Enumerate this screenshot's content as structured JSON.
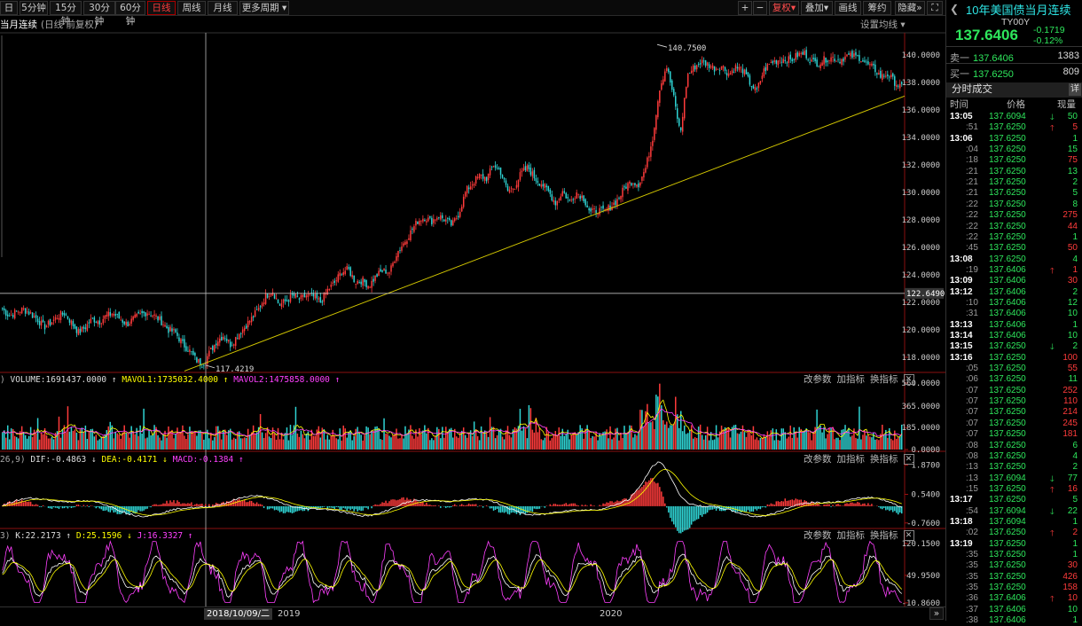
{
  "toolbar": {
    "items": [
      "日",
      "5分钟",
      "15分钟",
      "30分钟",
      "60分钟",
      "日线",
      "周线",
      "月线",
      "更多周期"
    ],
    "active": "日线",
    "right": [
      "复权",
      "叠加",
      "画线",
      "筹约",
      "隐藏"
    ],
    "plus": "+",
    "minus": "−"
  },
  "title": {
    "name": "当月连续",
    "sub": "(日线 前复权)",
    "settings": "设置均线"
  },
  "panel_buttons": [
    "改参数",
    "加指标",
    "换指标"
  ],
  "volume": {
    "prefix": ")",
    "label": "VOLUME:1691437.0000",
    "ma1": "MAVOL1:1735032.4000",
    "ma2": "MAVOL2:1475858.0000"
  },
  "macd": {
    "prefix": "26,9)",
    "dif": "DIF:-0.4863",
    "dea": "DEA:-0.4171",
    "macd": "MACD:-0.1384"
  },
  "kdj": {
    "prefix": "3)",
    "k": "K:22.2173",
    "d": "D:25.1596",
    "j": "J:16.3327"
  },
  "colors": {
    "up": "#ff3b3b",
    "down": "#2fd4d4",
    "ma1": "#ffff00",
    "ma2": "#ff40ff",
    "green": "#2ee65c",
    "trend": "#d4c800"
  },
  "xaxis": {
    "crosshair_date": "2018/10/09/二",
    "labels": [
      {
        "text": "2019",
        "pos": 0.3
      },
      {
        "text": "2020",
        "pos": 0.64
      }
    ]
  },
  "quote": {
    "title": "10年美国债当月连续",
    "code": "TY00Y",
    "price": "137.6406",
    "change": "-0.1719",
    "pct": "-0.12%",
    "ask_label": "卖一",
    "ask_price": "137.6406",
    "ask_vol": "1383",
    "bid_label": "买一",
    "bid_price": "137.6250",
    "bid_vol": "809",
    "section": "分时成交",
    "detail": "详",
    "hdr_time": "时间",
    "hdr_price": "价格",
    "hdr_vol": "现量"
  },
  "ticks": [
    {
      "t": "13:05",
      "b": 1,
      "p": "137.6094",
      "a": "down",
      "v": "50"
    },
    {
      "t": ":51",
      "b": 0,
      "p": "137.6250",
      "a": "up",
      "v": "5"
    },
    {
      "t": "13:06",
      "b": 1,
      "p": "137.6250",
      "a": "",
      "v": "1"
    },
    {
      "t": ":04",
      "b": 0,
      "p": "137.6250",
      "a": "",
      "v": "15"
    },
    {
      "t": ":18",
      "b": 0,
      "p": "137.6250",
      "a": "",
      "v": "75"
    },
    {
      "t": ":21",
      "b": 0,
      "p": "137.6250",
      "a": "",
      "v": "13"
    },
    {
      "t": ":21",
      "b": 0,
      "p": "137.6250",
      "a": "",
      "v": "2"
    },
    {
      "t": ":21",
      "b": 0,
      "p": "137.6250",
      "a": "",
      "v": "5"
    },
    {
      "t": ":22",
      "b": 0,
      "p": "137.6250",
      "a": "",
      "v": "8"
    },
    {
      "t": ":22",
      "b": 0,
      "p": "137.6250",
      "a": "",
      "v": "275"
    },
    {
      "t": ":22",
      "b": 0,
      "p": "137.6250",
      "a": "",
      "v": "44"
    },
    {
      "t": ":22",
      "b": 0,
      "p": "137.6250",
      "a": "",
      "v": "1"
    },
    {
      "t": ":45",
      "b": 0,
      "p": "137.6250",
      "a": "",
      "v": "50"
    },
    {
      "t": "13:08",
      "b": 1,
      "p": "137.6250",
      "a": "",
      "v": "4"
    },
    {
      "t": ":19",
      "b": 0,
      "p": "137.6406",
      "a": "up",
      "v": "1"
    },
    {
      "t": "13:09",
      "b": 1,
      "p": "137.6406",
      "a": "",
      "v": "30"
    },
    {
      "t": "13:12",
      "b": 1,
      "p": "137.6406",
      "a": "",
      "v": "2"
    },
    {
      "t": ":10",
      "b": 0,
      "p": "137.6406",
      "a": "",
      "v": "12"
    },
    {
      "t": ":31",
      "b": 0,
      "p": "137.6406",
      "a": "",
      "v": "10"
    },
    {
      "t": "13:13",
      "b": 1,
      "p": "137.6406",
      "a": "",
      "v": "1"
    },
    {
      "t": "13:14",
      "b": 1,
      "p": "137.6406",
      "a": "",
      "v": "10"
    },
    {
      "t": "13:15",
      "b": 1,
      "p": "137.6250",
      "a": "down",
      "v": "2"
    },
    {
      "t": "13:16",
      "b": 1,
      "p": "137.6250",
      "a": "",
      "v": "100"
    },
    {
      "t": ":05",
      "b": 0,
      "p": "137.6250",
      "a": "",
      "v": "55"
    },
    {
      "t": ":06",
      "b": 0,
      "p": "137.6250",
      "a": "",
      "v": "11"
    },
    {
      "t": ":07",
      "b": 0,
      "p": "137.6250",
      "a": "",
      "v": "252"
    },
    {
      "t": ":07",
      "b": 0,
      "p": "137.6250",
      "a": "",
      "v": "110"
    },
    {
      "t": ":07",
      "b": 0,
      "p": "137.6250",
      "a": "",
      "v": "214"
    },
    {
      "t": ":07",
      "b": 0,
      "p": "137.6250",
      "a": "",
      "v": "245"
    },
    {
      "t": ":07",
      "b": 0,
      "p": "137.6250",
      "a": "",
      "v": "181"
    },
    {
      "t": ":08",
      "b": 0,
      "p": "137.6250",
      "a": "",
      "v": "6"
    },
    {
      "t": ":08",
      "b": 0,
      "p": "137.6250",
      "a": "",
      "v": "4"
    },
    {
      "t": ":13",
      "b": 0,
      "p": "137.6250",
      "a": "",
      "v": "2"
    },
    {
      "t": ":13",
      "b": 0,
      "p": "137.6094",
      "a": "down",
      "v": "77"
    },
    {
      "t": ":15",
      "b": 0,
      "p": "137.6250",
      "a": "up",
      "v": "16"
    },
    {
      "t": "13:17",
      "b": 1,
      "p": "137.6250",
      "a": "",
      "v": "5"
    },
    {
      "t": ":54",
      "b": 0,
      "p": "137.6094",
      "a": "down",
      "v": "22"
    },
    {
      "t": "13:18",
      "b": 1,
      "p": "137.6094",
      "a": "",
      "v": "1"
    },
    {
      "t": ":02",
      "b": 0,
      "p": "137.6250",
      "a": "up",
      "v": "2"
    },
    {
      "t": "13:19",
      "b": 1,
      "p": "137.6250",
      "a": "",
      "v": "1"
    },
    {
      "t": ":35",
      "b": 0,
      "p": "137.6250",
      "a": "",
      "v": "1"
    },
    {
      "t": ":35",
      "b": 0,
      "p": "137.6250",
      "a": "",
      "v": "30"
    },
    {
      "t": ":35",
      "b": 0,
      "p": "137.6250",
      "a": "",
      "v": "426"
    },
    {
      "t": ":35",
      "b": 0,
      "p": "137.6250",
      "a": "",
      "v": "158"
    },
    {
      "t": ":36",
      "b": 0,
      "p": "137.6406",
      "a": "up",
      "v": "10"
    },
    {
      "t": ":37",
      "b": 0,
      "p": "137.6406",
      "a": "",
      "v": "10"
    },
    {
      "t": ":38",
      "b": 0,
      "p": "137.6406",
      "a": "",
      "v": "1"
    }
  ],
  "chart_data": [
    {
      "type": "candlestick",
      "title": "当月连续",
      "ylim": [
        116.9,
        141.6
      ],
      "yticks": [
        "140.0000",
        "138.0000",
        "136.0000",
        "134.0000",
        "132.0000",
        "130.0000",
        "128.0000",
        "126.0000",
        "124.0000",
        "122.0000",
        "120.0000",
        "118.0000"
      ],
      "ytick_values": [
        140,
        138,
        136,
        134,
        132,
        130,
        128,
        126,
        124,
        122,
        120,
        118
      ],
      "crosshair_price": "122.6490",
      "crosshair_value": 122.649,
      "annotations": [
        {
          "text": "140.7500",
          "value": 140.75
        },
        {
          "text": "117.4219",
          "value": 117.4219
        }
      ],
      "trendline": {
        "from": 117.0,
        "to": 137.0
      },
      "close_path": [
        121.5,
        121.0,
        121.3,
        121.5,
        121.2,
        120.8,
        120.2,
        120.5,
        121.0,
        121.2,
        120.5,
        119.8,
        120.2,
        120.8,
        120.6,
        121.0,
        121.2,
        120.8,
        120.4,
        120.8,
        121.1,
        121.3,
        121.0,
        120.6,
        120.0,
        119.8,
        119.0,
        118.5,
        117.8,
        117.5,
        118.4,
        119.2,
        119.6,
        118.9,
        119.6,
        120.2,
        120.8,
        121.5,
        122.4,
        122.9,
        121.8,
        122.1,
        122.5,
        122.2,
        122.5,
        122.4,
        122.0,
        122.9,
        123.4,
        124.2,
        124.4,
        123.5,
        123.6,
        123.2,
        123.9,
        124.3,
        124.2,
        125.6,
        126.3,
        127.1,
        127.9,
        128.2,
        127.9,
        128.3,
        128.0,
        127.6,
        128.5,
        130.1,
        130.7,
        131.2,
        131.0,
        132.0,
        131.5,
        130.1,
        130.4,
        131.4,
        131.8,
        131.0,
        130.6,
        130.0,
        129.2,
        130.1,
        129.3,
        130.0,
        129.6,
        128.5,
        128.7,
        128.6,
        129.0,
        129.5,
        130.4,
        130.8,
        130.6,
        131.8,
        134.0,
        137.6,
        139.2,
        137.0,
        134.2,
        138.5,
        139.1,
        139.5,
        139.3,
        139.0,
        139.2,
        138.6,
        139.1,
        138.9,
        138.0,
        137.3,
        138.8,
        139.4,
        139.6,
        139.7,
        139.6,
        140.0,
        140.1,
        139.5,
        139.4,
        139.7,
        139.8,
        139.6,
        139.9,
        139.9,
        139.8,
        139.3,
        139.0,
        138.4,
        138.6,
        138.0,
        137.6
      ]
    },
    {
      "type": "bar",
      "title": "VOLUME",
      "ylim": [
        0,
        560
      ],
      "yticks": [
        "560.0000",
        "365.0000",
        "185.0000",
        "0.0000"
      ],
      "ytick_values": [
        560,
        365,
        185,
        0
      ],
      "peak": 555,
      "typical": 150
    },
    {
      "type": "bar",
      "title": "MACD",
      "ylim": [
        -0.93,
        1.97
      ],
      "yticks": [
        "1.8700",
        "0.5400",
        "-0.7600"
      ],
      "ytick_values": [
        1.87,
        0.54,
        -0.76
      ],
      "peak": 1.87
    },
    {
      "type": "line",
      "title": "KDJ",
      "ylim": [
        -15,
        130
      ],
      "yticks": [
        "120.1500",
        "49.9500",
        "-10.8600"
      ],
      "ytick_values": [
        120.15,
        49.95,
        -10.86
      ]
    }
  ]
}
